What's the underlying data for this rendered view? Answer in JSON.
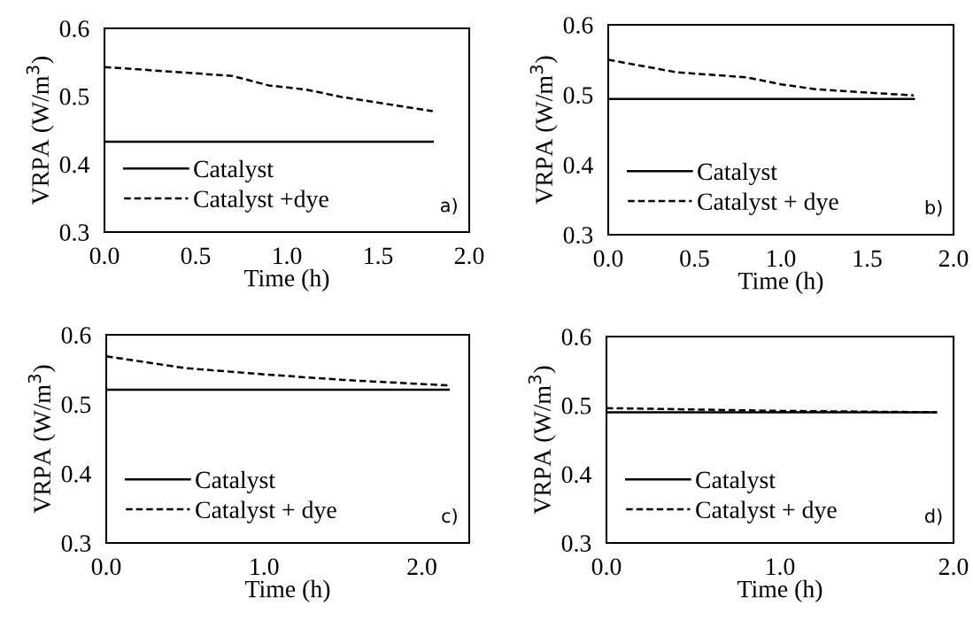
{
  "chart_data": [
    {
      "type": "line",
      "xlabel": "Time (h)",
      "ylabel": "VRPA (W/m$^{3}$)",
      "xlim": [
        0,
        2.0
      ],
      "xticks": [
        {
          "value": 0,
          "label": "0.0"
        },
        {
          "value": 0.5,
          "label": "0.5"
        },
        {
          "value": 1.0,
          "label": "1.0"
        },
        {
          "value": 1.5,
          "label": "1.5"
        },
        {
          "value": 2.0,
          "label": "2.0"
        }
      ],
      "ylim": [
        0.3,
        0.6
      ],
      "yticks": [
        0.3,
        0.4,
        0.5,
        0.6
      ],
      "legend": "bottom left",
      "grid": false,
      "annotations": [
        "a)"
      ],
      "series": [
        {
          "name": "Catalyst",
          "color": "#000000",
          "line_style": "solid",
          "x": [
            0,
            1.8
          ],
          "values": [
            0.433,
            0.433
          ]
        },
        {
          "name": "Catalyst +dye",
          "color": "#000000",
          "line_style": "dashed",
          "x": [
            0,
            0.7,
            0.9,
            1.1,
            1.3,
            1.8
          ],
          "values": [
            0.543,
            0.53,
            0.516,
            0.51,
            0.499,
            0.478
          ]
        }
      ]
    },
    {
      "type": "line",
      "xlabel": "Time (h)",
      "ylabel": "VRPA (W/m$^{3}$)",
      "xlim": [
        0,
        2.0
      ],
      "xticks": [
        {
          "value": 0,
          "label": "0.0"
        },
        {
          "value": 0.5,
          "label": "0.5"
        },
        {
          "value": 1.0,
          "label": "1.0"
        },
        {
          "value": 1.5,
          "label": "1.5"
        },
        {
          "value": 2.0,
          "label": "2.0"
        }
      ],
      "ylim": [
        0.3,
        0.6
      ],
      "yticks": [
        0.3,
        0.4,
        0.5,
        0.6
      ],
      "legend": "bottom left",
      "grid": false,
      "annotations": [
        "b)"
      ],
      "series": [
        {
          "name": "Catalyst",
          "color": "#000000",
          "line_style": "solid",
          "x": [
            0,
            1.77
          ],
          "values": [
            0.494,
            0.494
          ]
        },
        {
          "name": "Catalyst + dye",
          "color": "#000000",
          "line_style": "dashed",
          "x": [
            0,
            0.4,
            0.8,
            1.0,
            1.2,
            1.77
          ],
          "values": [
            0.55,
            0.532,
            0.525,
            0.515,
            0.508,
            0.499
          ]
        }
      ]
    },
    {
      "type": "line",
      "xlabel": "Time (h)",
      "ylabel": "VRPA (W/m$^{3}$)",
      "xlim": [
        0,
        2.3
      ],
      "xticks": [
        {
          "value": 0,
          "label": "0.0"
        },
        {
          "value": 1.0,
          "label": "1.0"
        },
        {
          "value": 2.0,
          "label": "2.0"
        }
      ],
      "ylim": [
        0.3,
        0.6
      ],
      "yticks": [
        0.3,
        0.4,
        0.5,
        0.6
      ],
      "legend": "bottom left",
      "grid": false,
      "annotations": [
        "c)"
      ],
      "series": [
        {
          "name": "Catalyst",
          "color": "#000000",
          "line_style": "solid",
          "x": [
            0,
            2.17
          ],
          "values": [
            0.521,
            0.521
          ]
        },
        {
          "name": "Catalyst + dye",
          "color": "#000000",
          "line_style": "dashed",
          "x": [
            0,
            0.5,
            1.0,
            1.5,
            2.17
          ],
          "values": [
            0.569,
            0.552,
            0.543,
            0.535,
            0.527
          ]
        }
      ]
    },
    {
      "type": "line",
      "xlabel": "Time (h)",
      "ylabel": "VRPA (W/m$^{3}$)",
      "xlim": [
        0,
        2.0
      ],
      "xticks": [
        {
          "value": 0,
          "label": "0.0"
        },
        {
          "value": 1.0,
          "label": "1.0"
        },
        {
          "value": 2.0,
          "label": "2.0"
        }
      ],
      "ylim": [
        0.3,
        0.6
      ],
      "yticks": [
        0.3,
        0.4,
        0.5,
        0.6
      ],
      "legend": "bottom left",
      "grid": false,
      "annotations": [
        "d)"
      ],
      "series": [
        {
          "name": "Catalyst",
          "color": "#000000",
          "line_style": "solid",
          "x": [
            0,
            1.9
          ],
          "values": [
            0.49,
            0.49
          ]
        },
        {
          "name": "Catalyst + dye",
          "color": "#000000",
          "line_style": "dashed",
          "x": [
            0,
            1.0,
            1.9
          ],
          "values": [
            0.496,
            0.492,
            0.49
          ]
        }
      ]
    }
  ]
}
